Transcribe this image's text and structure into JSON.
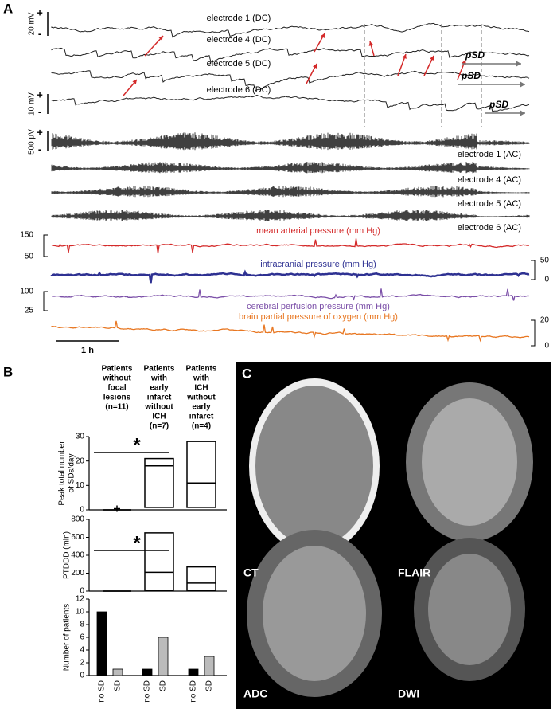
{
  "panel_labels": {
    "a": "A",
    "b": "B",
    "c": "C"
  },
  "panel_a": {
    "dc_traces": [
      "electrode 1 (DC)",
      "electrode 4 (DC)",
      "electrode 5 (DC)",
      "electrode 6 (DC)"
    ],
    "dc_scales": [
      {
        "label": "20 mV",
        "plus": "+",
        "minus": "-"
      },
      {
        "label": "10 mV",
        "plus": "+",
        "minus": "-"
      }
    ],
    "ac_scale": {
      "label": "500 µV",
      "plus": "+",
      "minus": "-"
    },
    "ac_traces": [
      "electrode 1 (AC)",
      "electrode 4 (AC)",
      "electrode 5 (AC)",
      "electrode 6 (AC)"
    ],
    "pressure_traces": [
      {
        "label": "mean arterial pressure (mm Hg)",
        "color": "#d42a2a",
        "scale_max": 150,
        "scale_min": 50
      },
      {
        "label": "intracranial pressure (mm Hg)",
        "color": "#2e3192",
        "scale_max": 50,
        "scale_min": 0
      },
      {
        "label": "cerebral perfusion pressure (mm Hg)",
        "color": "#7b4fa8",
        "scale_max": 100,
        "scale_min": 25
      },
      {
        "label": "brain partial pressure of oxygen (mm Hg)",
        "color": "#e87722",
        "scale_max": 20,
        "scale_min": 0
      }
    ],
    "psd_labels": [
      "pSD",
      "pSD",
      "pSD"
    ],
    "time_scale": "1 h"
  },
  "group_headers": [
    [
      "Patients",
      "without",
      "focal",
      "lesions",
      "(n=11)"
    ],
    [
      "Patients",
      "with",
      "early",
      "infarct",
      "without",
      "ICH",
      "(n=7)"
    ],
    [
      "Patients",
      "with",
      "ICH",
      "without",
      "early",
      "infarct",
      "(n=4)"
    ]
  ],
  "chart_data": [
    {
      "type": "box",
      "y_label": [
        "Peak total number",
        "of SDs/day"
      ],
      "ylim": [
        0,
        30
      ],
      "yticks": [
        0,
        10,
        20,
        30
      ],
      "boxes": [
        {
          "q1": 0,
          "median": 0,
          "q3": 0,
          "mean": 0.5
        },
        {
          "q1": 1,
          "median": 18,
          "q3": 21
        },
        {
          "q1": 1,
          "median": 11,
          "q3": 28
        }
      ],
      "annotations": [
        "*"
      ]
    },
    {
      "type": "box",
      "y_label": [
        "PTDDD (min)"
      ],
      "ylim": [
        0,
        800
      ],
      "yticks": [
        0,
        200,
        400,
        600,
        800
      ],
      "boxes": [
        {
          "q1": 0,
          "median": 0,
          "q3": 0
        },
        {
          "q1": 10,
          "median": 210,
          "q3": 650
        },
        {
          "q1": 10,
          "median": 90,
          "q3": 270
        }
      ],
      "annotations": [
        "*"
      ]
    },
    {
      "type": "bar",
      "y_label": [
        "Number of patients"
      ],
      "ylim": [
        0,
        12
      ],
      "yticks": [
        0,
        2,
        4,
        6,
        8,
        10,
        12
      ],
      "categories": [
        "no SD",
        "SD",
        "no SD",
        "SD",
        "no SD",
        "SD"
      ],
      "values": [
        10,
        1,
        1,
        6,
        1,
        3
      ],
      "colors": [
        "#000000",
        "#bbbbbb",
        "#000000",
        "#bbbbbb",
        "#000000",
        "#bbbbbb"
      ]
    }
  ],
  "panel_c": {
    "labels": [
      "CT",
      "FLAIR",
      "ADC",
      "DWI"
    ]
  }
}
